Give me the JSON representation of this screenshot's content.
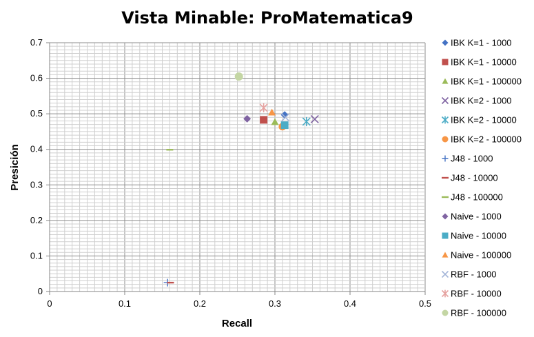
{
  "chart_data": {
    "type": "scatter",
    "title": "Vista Minable: ProMatematica9",
    "xlabel": "Recall",
    "ylabel": "Presición",
    "xlim": [
      0,
      0.5
    ],
    "ylim": [
      0,
      0.7
    ],
    "x_ticks": [
      "0",
      "0.1",
      "0.2",
      "0.3",
      "0.4",
      "0.5"
    ],
    "y_ticks": [
      "0",
      "0.1",
      "0.2",
      "0.3",
      "0.4",
      "0.5",
      "0.6",
      "0.7"
    ],
    "grid": true,
    "legend_position": "right",
    "series": [
      {
        "name": "IBK K=1 - 1000",
        "marker": "diamond",
        "color": "#4472C4",
        "points": [
          [
            0.313,
            0.497
          ]
        ]
      },
      {
        "name": "IBK K=1 - 10000",
        "marker": "square",
        "color": "#C0504D",
        "points": [
          [
            0.285,
            0.483
          ]
        ]
      },
      {
        "name": "IBK K=1 - 100000",
        "marker": "triangle",
        "color": "#9BBB59",
        "points": [
          [
            0.3,
            0.477
          ]
        ]
      },
      {
        "name": "IBK K=2 - 1000",
        "marker": "x",
        "color": "#8064A2",
        "points": [
          [
            0.353,
            0.485
          ]
        ]
      },
      {
        "name": "IBK K=2 - 10000",
        "marker": "star",
        "color": "#4BACC6",
        "points": [
          [
            0.342,
            0.478
          ]
        ]
      },
      {
        "name": "IBK K=2 - 100000",
        "marker": "circle",
        "color": "#F79646",
        "points": [
          [
            0.31,
            0.464
          ]
        ]
      },
      {
        "name": "J48 - 1000",
        "marker": "plus",
        "color": "#4472C4",
        "points": [
          [
            0.157,
            0.025
          ]
        ]
      },
      {
        "name": "J48 - 10000",
        "marker": "dash",
        "color": "#C0504D",
        "points": [
          [
            0.161,
            0.025
          ]
        ]
      },
      {
        "name": "J48 - 100000",
        "marker": "dash",
        "color": "#9BBB59",
        "points": [
          [
            0.16,
            0.399
          ]
        ]
      },
      {
        "name": "Naive - 1000",
        "marker": "diamond",
        "color": "#8064A2",
        "points": [
          [
            0.263,
            0.486
          ]
        ]
      },
      {
        "name": "Naive - 10000",
        "marker": "square",
        "color": "#4BACC6",
        "points": [
          [
            0.313,
            0.468
          ]
        ]
      },
      {
        "name": "Naive - 100000",
        "marker": "triangle",
        "color": "#F79646",
        "points": [
          [
            0.296,
            0.504
          ]
        ]
      },
      {
        "name": "RBF - 1000",
        "marker": "x",
        "color": "#A5B6D9",
        "points": [
          [
            0.314,
            0.49
          ]
        ]
      },
      {
        "name": "RBF - 10000",
        "marker": "star",
        "color": "#E6A3A1",
        "points": [
          [
            0.285,
            0.517
          ]
        ]
      },
      {
        "name": "RBF - 100000",
        "marker": "circle",
        "color": "#C4D6A4",
        "points": [
          [
            0.252,
            0.605
          ]
        ]
      }
    ]
  }
}
